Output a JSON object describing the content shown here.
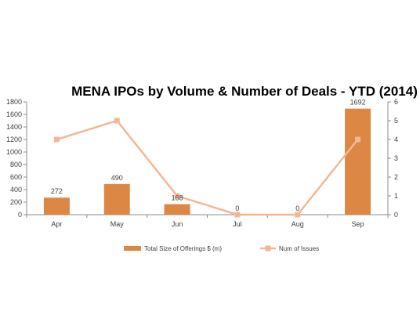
{
  "chart_data": {
    "type": "bar",
    "title": "MENA IPOs by Volume & Number of Deals - YTD (2014)",
    "categories": [
      "Apr",
      "May",
      "Jun",
      "Jul",
      "Aug",
      "Sep"
    ],
    "series": [
      {
        "name": "Total Size of Offerings $ (m)",
        "type": "bar",
        "axis": "left",
        "color": "#dc8844",
        "values": [
          272,
          490,
          168,
          0,
          0,
          1692
        ],
        "data_labels": [
          "272",
          "490",
          "168",
          "0",
          "0",
          "1692"
        ]
      },
      {
        "name": "Num of Issues",
        "type": "line",
        "axis": "right",
        "color": "#f2b896",
        "values": [
          4,
          5,
          1,
          0,
          0,
          4
        ]
      }
    ],
    "ylim": [
      0,
      1800
    ],
    "yticks": [
      "0",
      "200",
      "400",
      "600",
      "800",
      "1000",
      "1200",
      "1400",
      "1600",
      "1800"
    ],
    "y2lim": [
      0,
      6
    ],
    "y2ticks": [
      "0",
      "1",
      "2",
      "3",
      "4",
      "5",
      "6"
    ],
    "grid": false,
    "legend_position": "bottom"
  }
}
